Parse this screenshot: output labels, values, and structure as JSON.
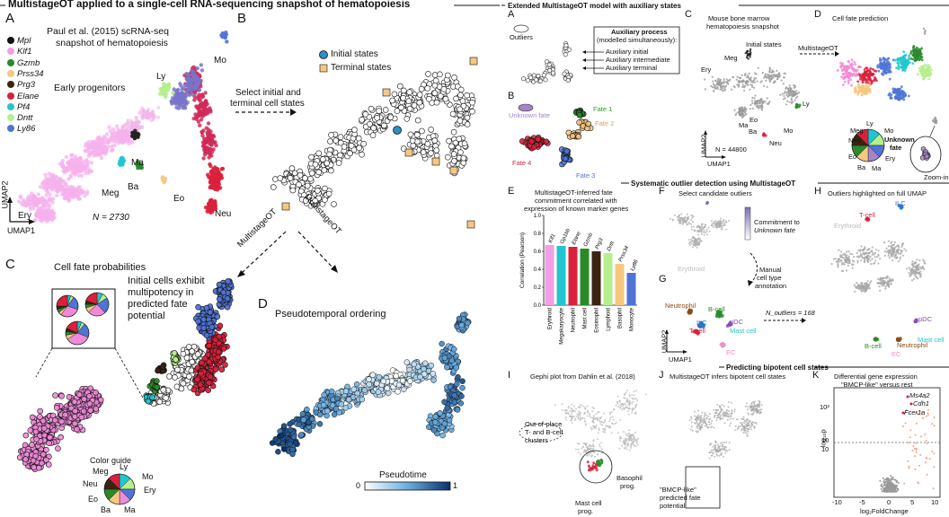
{
  "left_title": "MultistageOT applied to a single-cell RNA-sequencing snapshot of hematopoiesis",
  "panelA": {
    "letter": "A",
    "title_line1": "Paul et al. (2015) scRNA-seq",
    "title_line2": "snapshot of hematopoiesis",
    "legend": [
      {
        "gene": "Mpl",
        "color": "#111111"
      },
      {
        "gene": "Klf1",
        "color": "#f29ee6"
      },
      {
        "gene": "Gzmb",
        "color": "#2a8a2a"
      },
      {
        "gene": "Prss34",
        "color": "#f6c77f"
      },
      {
        "gene": "Prg3",
        "color": "#3a2412"
      },
      {
        "gene": "Elane",
        "color": "#d9213b"
      },
      {
        "gene": "Pf4",
        "color": "#22c5cf"
      },
      {
        "gene": "Dntt",
        "color": "#b6ef8e"
      },
      {
        "gene": "Ly86",
        "color": "#4f74d6"
      }
    ],
    "early_progenitors": "Early progenitors",
    "cell_labels": [
      "Ly",
      "Mo",
      "Ma",
      "Ba",
      "Meg",
      "Eo",
      "Neu",
      "Ery"
    ],
    "n_label": "N = 2730",
    "axis_x": "UMAP1",
    "axis_y": "UMAP2"
  },
  "panelB": {
    "letter": "B",
    "legend": [
      "Initial states",
      "Terminal states"
    ],
    "arrow_text_line1": "Select initial and",
    "arrow_text_line2": "terminal cell states"
  },
  "panelC": {
    "letter": "C",
    "title": "Cell fate probabilities",
    "note_line1": "Initial cells exhibit",
    "note_line2": "multipotency in",
    "note_line3": "predicted fate",
    "note_line4": "potential",
    "color_guide": "Color guide",
    "guide_labels": [
      "Meg",
      "Ly",
      "Mo",
      "Neu",
      "Ery",
      "Eo",
      "Ba",
      "Ma"
    ]
  },
  "panelD": {
    "letter": "D",
    "title": "Pseudotemporal ordering",
    "colorbar_label": "Pseudotime",
    "colorbar_min": "0",
    "colorbar_max": "1"
  },
  "arrows": [
    "MultistageOT",
    "MultistageOT"
  ],
  "right": {
    "title_top": "Extended MultistageOT model with auxiliary states",
    "A": {
      "letter": "A",
      "outliers": "Outliers",
      "aux_title": "Auxiliary process",
      "aux_sub": "(modelled simultaneously):",
      "aux_items": [
        "Auxiliary initial",
        "Auxiliary intermediate",
        "Auxiliary terminal"
      ]
    },
    "B": {
      "letter": "B",
      "unknown": "Unknown fate",
      "fates": [
        "Fate 1",
        "Fate 2",
        "Fate 3",
        "Fate 4"
      ]
    },
    "C": {
      "letter": "C",
      "title_line1": "Mouse bone marrow",
      "title_line2": "hematopoiesis snapshot",
      "initial": "Initial states",
      "labels": [
        "Meg",
        "Ery",
        "Ly",
        "Ma",
        "Eo",
        "Mo",
        "Ba",
        "Neu"
      ],
      "n_label": "N = 44800",
      "axis_x": "UMAP1",
      "axis_y": "UMAP2"
    },
    "D": {
      "letter": "D",
      "title": "Cell fate prediction",
      "arrow": "MultistageOT",
      "pie_labels": [
        "Meg",
        "Ly",
        "Mo",
        "Neu",
        "Eo",
        "Ba",
        "Ma",
        "Ery"
      ],
      "unknown_line1": "Unknown",
      "unknown_line2": "fate",
      "zoom": "Zoom-in"
    },
    "title_mid": "Systematic outlier detection using MultistageOT",
    "E": {
      "letter": "E",
      "title_line1": "MultistageOT-inferred fate",
      "title_line2": "commitment correlated with",
      "title_line3": "expression of known marker genes",
      "ylabel": "Correlation (Pearson)"
    },
    "F": {
      "letter": "F",
      "title": "Select candidate outliers",
      "colorbar_line1": "Commitment to",
      "colorbar_line2": "Unknown fate",
      "ery": "Erythroid",
      "manual_line1": "Manual",
      "manual_line2": "cell type",
      "manual_line3": "annotation"
    },
    "G": {
      "letter": "G",
      "labels": [
        "Neutrophil",
        "B-cell",
        "ILC",
        "pDC",
        "T-cell",
        "Mast cell",
        "EC"
      ],
      "n_outliers": "N_outliers = 168",
      "axis_x": "UMAP1",
      "axis_y": "UMAP2"
    },
    "H": {
      "letter": "H",
      "title": "Outliers highlighted on full UMAP",
      "labels": [
        "ILC",
        "T-cell",
        "Erythroid",
        "pDC",
        "Mast cell",
        "B-cell",
        "Neutrophil",
        "EC"
      ]
    },
    "title_bottom": "Predicting bipotent cell states",
    "I": {
      "letter": "I",
      "title": "Gephi plot from Dahlin et al. (2018)",
      "note_line1": "Out-of-place",
      "note_line2": "T- and B-cell",
      "note_line3": "clusters",
      "baso_line1": "Basophil",
      "baso_line2": "prog.",
      "mast_line1": "Mast cell",
      "mast_line2": "prog."
    },
    "J": {
      "letter": "J",
      "title": "MultistageOT infers bipotent cell states",
      "note_line1": "\"BMCP-like\"",
      "note_line2": "predicted fate",
      "note_line3": "potential"
    },
    "K": {
      "letter": "K",
      "title_line1": "Differential gene expression",
      "title_line2": "\"BMCP-like\" versus rest",
      "genes": [
        "Ms4a2",
        "Cdh1",
        "Fcer1a"
      ],
      "xlabel": "log₂FoldChange",
      "ylabel": "-log₁₀p",
      "xticks": [
        "-10",
        "-5",
        "0",
        "5",
        "10"
      ],
      "yticks": [
        "10²",
        "10",
        "10"
      ]
    }
  },
  "chart_data": {
    "type": "bar",
    "categories": [
      "Erythroid",
      "Megakaryocyte",
      "Neutrophil",
      "Mast cell",
      "Eosinophil",
      "Lymphoid",
      "Basophil",
      "Monocyte"
    ],
    "genes": [
      "Klf1",
      "Gp1bb",
      "Elane",
      "Gzmb",
      "Prg3",
      "Dntt",
      "Prss34",
      "Ly86"
    ],
    "values": [
      0.67,
      0.66,
      0.65,
      0.63,
      0.6,
      0.58,
      0.46,
      0.36
    ],
    "colors": [
      "#f29ee6",
      "#22c5cf",
      "#d9213b",
      "#2a8a2a",
      "#3a2412",
      "#b6ef8e",
      "#f6c77f",
      "#4f74d6"
    ],
    "ylim": [
      0,
      1
    ],
    "yticks": [
      "0.0",
      "0.2",
      "0.4",
      "0.6",
      "0.8",
      "1.0"
    ],
    "ylabel": "Correlation (Pearson)"
  }
}
